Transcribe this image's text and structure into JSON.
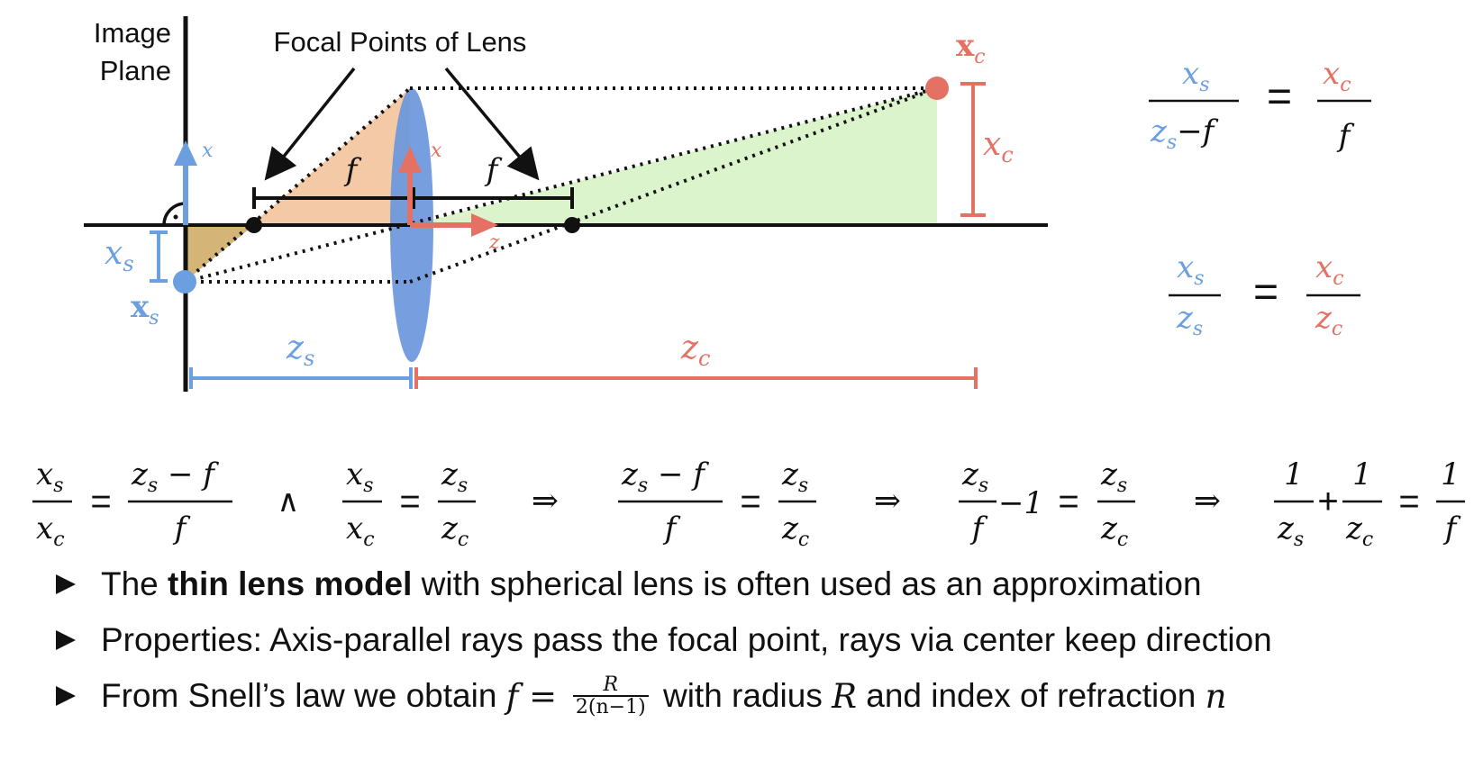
{
  "colors": {
    "blue": "#6b9fe0",
    "red": "#e37265",
    "orange_fill": "#f3c9a6",
    "green_fill": "#dcf4cc",
    "brown_fill": "#d5b477",
    "lens": "#6b97dd"
  },
  "labels": {
    "image_plane_line1": "Image",
    "image_plane_line2": "Plane",
    "focal_points": "Focal Points of Lens",
    "f_left": "f",
    "f_right": "f",
    "x_axis_left": "x",
    "x_axis_lens": "x",
    "z_axis_lens": "z",
    "xs_dim": "x",
    "xs_dim_sub": "s",
    "xs_point": "x",
    "xs_point_sub": "s",
    "xc_point": "x",
    "xc_point_sub": "c",
    "xc_dim": "x",
    "xc_dim_sub": "c",
    "zs_dim": "z",
    "zs_dim_sub": "s",
    "zc_dim": "z",
    "zc_dim_sub": "c"
  },
  "boxes": {
    "green": {
      "num_left": "x",
      "num_left_sub": "s",
      "den_left_a": "z",
      "den_left_sub": "s",
      "den_left_b": "−f",
      "equals": "=",
      "num_right": "x",
      "num_right_sub": "c",
      "den_right": "f"
    },
    "peach": {
      "num_left": "x",
      "num_left_sub": "s",
      "den_left": "z",
      "den_left_sub": "s",
      "equals": "=",
      "num_right": "x",
      "num_right_sub": "c",
      "den_right": "z",
      "den_right_sub": "c"
    }
  },
  "derivation": {
    "e1": {
      "n1": "x",
      "n1s": "s",
      "d1": "x",
      "d1s": "c",
      "eq": "=",
      "n2": "z",
      "n2s": "s",
      "n2t": " − f",
      "d2": "f"
    },
    "and": "∧",
    "e2": {
      "n1": "x",
      "n1s": "s",
      "d1": "x",
      "d1s": "c",
      "eq": "=",
      "n2": "z",
      "n2s": "s",
      "d2": "z",
      "d2s": "c"
    },
    "arrow1": "⇒",
    "e3": {
      "n1": "z",
      "n1s": "s",
      "n1t": " − f",
      "d1": "f",
      "eq": "=",
      "n2": "z",
      "n2s": "s",
      "d2": "z",
      "d2s": "c"
    },
    "arrow2": "⇒",
    "e4": {
      "n1": "z",
      "n1s": "s",
      "d1": "f",
      "minus": "−1",
      "eq": "=",
      "n2": "z",
      "n2s": "s",
      "d2": "z",
      "d2s": "c"
    },
    "arrow3": "⇒",
    "e5": {
      "n1": "1",
      "d1": "z",
      "d1s": "s",
      "plus": "+",
      "n2": "1",
      "d2": "z",
      "d2s": "c",
      "eq": "=",
      "n3": "1",
      "d3": "f"
    }
  },
  "bullets": [
    {
      "pre": "The ",
      "bold": "thin lens model",
      "post": " with spherical lens is often used as an approximation"
    },
    {
      "text": "Properties: Axis-parallel rays pass the focal point, rays via center keep direction"
    },
    {
      "pre": "From Snell’s law we obtain ",
      "f": "f",
      "eq": " = ",
      "num": "R",
      "den": "2(n−1)",
      "mid": " with radius ",
      "R": "R",
      "mid2": " and index of refraction ",
      "n": "n"
    }
  ]
}
